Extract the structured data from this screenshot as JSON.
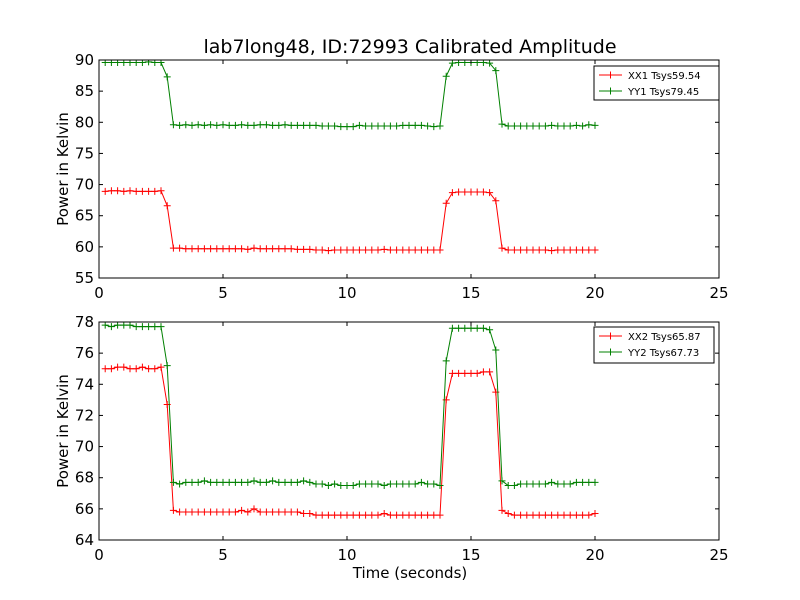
{
  "figure": {
    "title": "lab7long48, ID:72993 Calibrated Amplitude",
    "xlabel": "Time (seconds)"
  },
  "chart_data": [
    {
      "type": "line",
      "ylabel": "Power in Kelvin",
      "xlim": [
        0,
        25
      ],
      "ylim": [
        55,
        90
      ],
      "xticks": [
        0,
        5,
        10,
        15,
        20,
        25
      ],
      "yticks": [
        55,
        60,
        65,
        70,
        75,
        80,
        85,
        90
      ],
      "xtick_labels": [
        "0",
        "5",
        "10",
        "15",
        "20",
        "25"
      ],
      "ytick_labels": [
        "55",
        "60",
        "65",
        "70",
        "75",
        "80",
        "85",
        "90"
      ],
      "grid": false,
      "legend_position": "top-right",
      "x": [
        0.25,
        0.5,
        0.75,
        1.0,
        1.25,
        1.5,
        1.75,
        2.0,
        2.25,
        2.5,
        2.75,
        3.0,
        3.25,
        3.5,
        3.75,
        4.0,
        4.25,
        4.5,
        4.75,
        5.0,
        5.25,
        5.5,
        5.75,
        6.0,
        6.25,
        6.5,
        6.75,
        7.0,
        7.25,
        7.5,
        7.75,
        8.0,
        8.25,
        8.5,
        8.75,
        9.0,
        9.25,
        9.5,
        9.75,
        10.0,
        10.25,
        10.5,
        10.75,
        11.0,
        11.25,
        11.5,
        11.75,
        12.0,
        12.25,
        12.5,
        12.75,
        13.0,
        13.25,
        13.5,
        13.75,
        14.0,
        14.25,
        14.5,
        14.75,
        15.0,
        15.25,
        15.5,
        15.75,
        16.0,
        16.25,
        16.5,
        16.75,
        17.0,
        17.25,
        17.5,
        17.75,
        18.0,
        18.25,
        18.5,
        18.75,
        19.0,
        19.25,
        19.5,
        19.75,
        20.0
      ],
      "series": [
        {
          "name": "XX1 Tsys59.54",
          "color": "#ff0000",
          "values": [
            68.9,
            69.0,
            69.0,
            68.9,
            69.0,
            68.9,
            68.9,
            68.9,
            68.9,
            69.0,
            66.6,
            59.8,
            59.8,
            59.7,
            59.7,
            59.7,
            59.7,
            59.7,
            59.7,
            59.7,
            59.7,
            59.7,
            59.7,
            59.6,
            59.8,
            59.7,
            59.7,
            59.7,
            59.7,
            59.7,
            59.7,
            59.6,
            59.6,
            59.6,
            59.5,
            59.5,
            59.4,
            59.5,
            59.5,
            59.5,
            59.5,
            59.5,
            59.5,
            59.5,
            59.5,
            59.6,
            59.5,
            59.5,
            59.5,
            59.5,
            59.5,
            59.5,
            59.5,
            59.5,
            59.5,
            67.0,
            68.7,
            68.8,
            68.8,
            68.8,
            68.8,
            68.8,
            68.7,
            67.4,
            59.8,
            59.5,
            59.5,
            59.5,
            59.5,
            59.5,
            59.5,
            59.5,
            59.4,
            59.5,
            59.5,
            59.5,
            59.5,
            59.5,
            59.5,
            59.5
          ]
        },
        {
          "name": "YY1 Tsys79.45",
          "color": "#008000",
          "values": [
            89.6,
            89.6,
            89.6,
            89.6,
            89.6,
            89.6,
            89.6,
            89.7,
            89.6,
            89.6,
            87.3,
            79.6,
            79.5,
            79.6,
            79.5,
            79.6,
            79.5,
            79.6,
            79.5,
            79.6,
            79.5,
            79.5,
            79.6,
            79.5,
            79.5,
            79.6,
            79.6,
            79.5,
            79.5,
            79.6,
            79.5,
            79.5,
            79.5,
            79.5,
            79.5,
            79.4,
            79.4,
            79.4,
            79.3,
            79.3,
            79.3,
            79.5,
            79.4,
            79.4,
            79.4,
            79.4,
            79.4,
            79.4,
            79.5,
            79.5,
            79.5,
            79.5,
            79.4,
            79.3,
            79.4,
            87.4,
            89.5,
            89.6,
            89.6,
            89.6,
            89.6,
            89.6,
            89.5,
            88.3,
            79.7,
            79.4,
            79.4,
            79.4,
            79.4,
            79.4,
            79.4,
            79.4,
            79.5,
            79.4,
            79.4,
            79.4,
            79.5,
            79.4,
            79.6,
            79.5
          ]
        }
      ]
    },
    {
      "type": "line",
      "ylabel": "Power in Kelvin",
      "xlabel": "Time (seconds)",
      "xlim": [
        0,
        25
      ],
      "ylim": [
        64,
        78
      ],
      "xticks": [
        0,
        5,
        10,
        15,
        20,
        25
      ],
      "yticks": [
        64,
        66,
        68,
        70,
        72,
        74,
        76,
        78
      ],
      "xtick_labels": [
        "0",
        "5",
        "10",
        "15",
        "20",
        "25"
      ],
      "ytick_labels": [
        "64",
        "66",
        "68",
        "70",
        "72",
        "74",
        "76",
        "78"
      ],
      "grid": false,
      "legend_position": "top-right",
      "x": [
        0.25,
        0.5,
        0.75,
        1.0,
        1.25,
        1.5,
        1.75,
        2.0,
        2.25,
        2.5,
        2.75,
        3.0,
        3.25,
        3.5,
        3.75,
        4.0,
        4.25,
        4.5,
        4.75,
        5.0,
        5.25,
        5.5,
        5.75,
        6.0,
        6.25,
        6.5,
        6.75,
        7.0,
        7.25,
        7.5,
        7.75,
        8.0,
        8.25,
        8.5,
        8.75,
        9.0,
        9.25,
        9.5,
        9.75,
        10.0,
        10.25,
        10.5,
        10.75,
        11.0,
        11.25,
        11.5,
        11.75,
        12.0,
        12.25,
        12.5,
        12.75,
        13.0,
        13.25,
        13.5,
        13.75,
        14.0,
        14.25,
        14.5,
        14.75,
        15.0,
        15.25,
        15.5,
        15.75,
        16.0,
        16.25,
        16.5,
        16.75,
        17.0,
        17.25,
        17.5,
        17.75,
        18.0,
        18.25,
        18.5,
        18.75,
        19.0,
        19.25,
        19.5,
        19.75,
        20.0
      ],
      "series": [
        {
          "name": "XX2 Tsys65.87",
          "color": "#ff0000",
          "values": [
            75.0,
            75.0,
            75.1,
            75.1,
            75.0,
            75.0,
            75.1,
            75.0,
            75.0,
            75.1,
            72.7,
            65.9,
            65.8,
            65.8,
            65.8,
            65.8,
            65.8,
            65.8,
            65.8,
            65.8,
            65.8,
            65.8,
            65.9,
            65.8,
            66.0,
            65.8,
            65.8,
            65.8,
            65.8,
            65.8,
            65.8,
            65.8,
            65.7,
            65.7,
            65.6,
            65.6,
            65.6,
            65.6,
            65.6,
            65.6,
            65.6,
            65.6,
            65.6,
            65.6,
            65.6,
            65.7,
            65.6,
            65.6,
            65.6,
            65.6,
            65.6,
            65.6,
            65.6,
            65.6,
            65.6,
            73.0,
            74.7,
            74.7,
            74.7,
            74.7,
            74.7,
            74.8,
            74.8,
            73.5,
            65.9,
            65.7,
            65.6,
            65.6,
            65.6,
            65.6,
            65.6,
            65.6,
            65.6,
            65.6,
            65.6,
            65.6,
            65.6,
            65.6,
            65.6,
            65.7
          ]
        },
        {
          "name": "YY2 Tsys67.73",
          "color": "#008000",
          "values": [
            77.8,
            77.7,
            77.8,
            77.8,
            77.8,
            77.7,
            77.7,
            77.7,
            77.7,
            77.7,
            75.2,
            67.7,
            67.6,
            67.7,
            67.7,
            67.7,
            67.8,
            67.7,
            67.7,
            67.7,
            67.7,
            67.7,
            67.7,
            67.7,
            67.8,
            67.7,
            67.7,
            67.8,
            67.7,
            67.7,
            67.7,
            67.7,
            67.8,
            67.7,
            67.6,
            67.6,
            67.5,
            67.6,
            67.5,
            67.5,
            67.5,
            67.6,
            67.6,
            67.6,
            67.6,
            67.5,
            67.6,
            67.6,
            67.6,
            67.6,
            67.6,
            67.7,
            67.6,
            67.6,
            67.5,
            75.5,
            77.6,
            77.6,
            77.6,
            77.6,
            77.6,
            77.6,
            77.5,
            76.2,
            67.8,
            67.5,
            67.5,
            67.6,
            67.6,
            67.6,
            67.6,
            67.6,
            67.7,
            67.6,
            67.6,
            67.6,
            67.7,
            67.7,
            67.7,
            67.7
          ]
        }
      ]
    }
  ]
}
